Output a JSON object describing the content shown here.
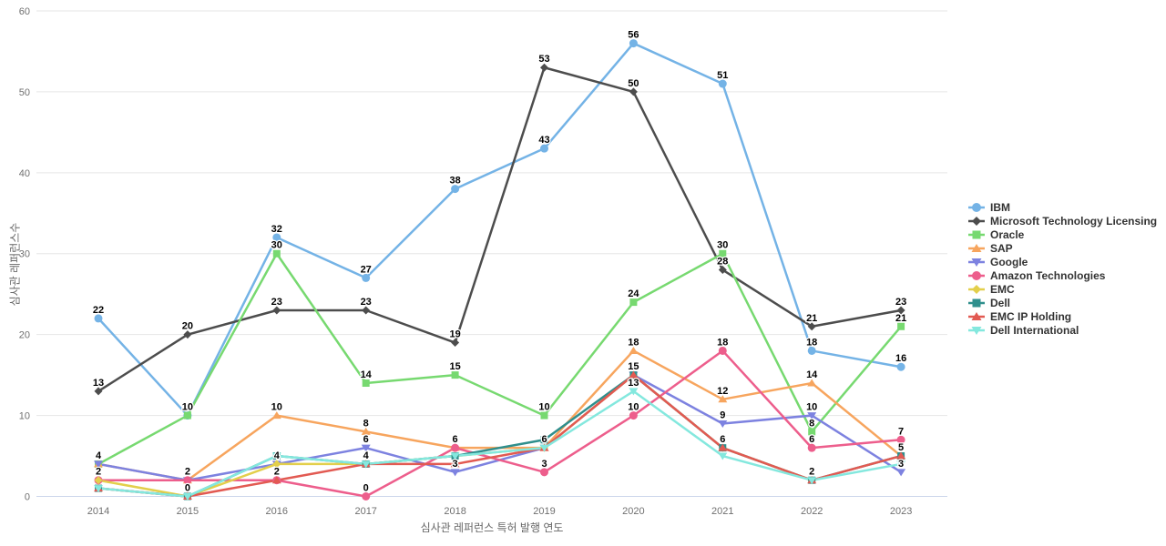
{
  "chart_data": {
    "type": "line",
    "title": "",
    "xlabel": "심사관 레퍼런스 특허 발행 연도",
    "ylabel": "심사관 레퍼런스수",
    "x": [
      2014,
      2015,
      2016,
      2017,
      2018,
      2019,
      2020,
      2021,
      2022,
      2023
    ],
    "ylim": [
      0,
      60
    ],
    "yticks": [
      0,
      10,
      20,
      30,
      40,
      50,
      60
    ],
    "grid": true,
    "legend_position": "right",
    "grid_color": "#e6e6e6",
    "axis_line_color": "#ccd6eb",
    "tick_text_color": "#707070",
    "label_text_color": "#000000",
    "series": [
      {
        "name": "IBM",
        "color": "#74b3e6",
        "marker": "circle",
        "values": [
          22,
          10,
          32,
          27,
          38,
          43,
          56,
          51,
          18,
          16
        ]
      },
      {
        "name": "Microsoft Technology Licensing",
        "color": "#4d4d4d",
        "marker": "diamond",
        "values": [
          13,
          20,
          23,
          23,
          19,
          53,
          50,
          28,
          21,
          23
        ]
      },
      {
        "name": "Oracle",
        "color": "#77d970",
        "marker": "square",
        "values": [
          4,
          10,
          30,
          14,
          15,
          10,
          24,
          30,
          8,
          21
        ]
      },
      {
        "name": "SAP",
        "color": "#f7a55e",
        "marker": "triangle-up",
        "values": [
          4,
          2,
          10,
          8,
          6,
          6,
          18,
          12,
          14,
          5
        ]
      },
      {
        "name": "Google",
        "color": "#7d82e0",
        "marker": "triangle-down",
        "values": [
          4,
          2,
          4,
          6,
          3,
          6,
          15,
          9,
          10,
          3
        ]
      },
      {
        "name": "Amazon Technologies",
        "color": "#ed5e8c",
        "marker": "circle",
        "values": [
          2,
          2,
          2,
          0,
          6,
          3,
          10,
          18,
          6,
          7
        ]
      },
      {
        "name": "EMC",
        "color": "#e3cf4b",
        "marker": "diamond",
        "values": [
          2,
          0,
          4,
          4,
          5,
          6,
          15,
          6,
          2,
          null
        ]
      },
      {
        "name": "Dell",
        "color": "#2f8f8d",
        "marker": "square",
        "values": [
          1,
          0,
          5,
          4,
          5,
          7,
          15,
          6,
          2,
          5
        ]
      },
      {
        "name": "EMC IP Holding",
        "color": "#e25a52",
        "marker": "triangle-up",
        "values": [
          1,
          0,
          2,
          4,
          4,
          6,
          15,
          6,
          2,
          5
        ]
      },
      {
        "name": "Dell International",
        "color": "#84e8de",
        "marker": "triangle-down",
        "values": [
          1,
          0,
          5,
          4,
          5,
          6,
          13,
          5,
          2,
          4
        ]
      }
    ]
  }
}
